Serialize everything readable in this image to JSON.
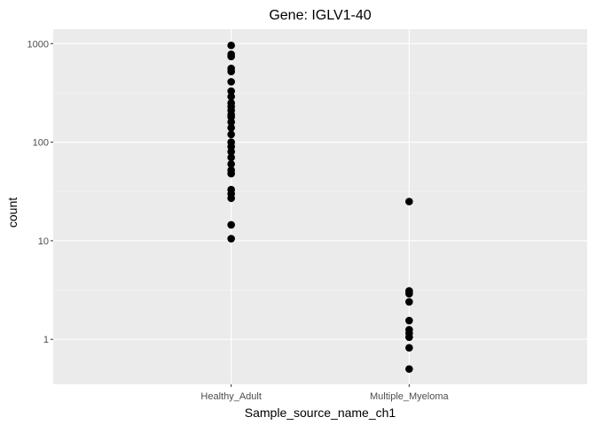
{
  "chart_data": {
    "type": "scatter",
    "title": "Gene: IGLV1-40",
    "xlabel": "Sample_source_name_ch1",
    "ylabel": "count",
    "y_scale": "log10",
    "ylim": [
      0.35,
      1400
    ],
    "y_ticks": [
      1,
      10,
      100,
      1000
    ],
    "y_tick_labels": [
      "1",
      "10",
      "100",
      "1000"
    ],
    "categories": [
      "Healthy_Adult",
      "Multiple_Myeloma"
    ],
    "grid": true,
    "colors": {
      "panel_background": "#ebebeb",
      "grid_major": "#ffffff",
      "grid_minor": "#f5f5f5",
      "point": "#000000",
      "tick_label": "#4d4d4d"
    },
    "series": [
      {
        "category": "Healthy_Adult",
        "values": [
          960,
          780,
          740,
          560,
          520,
          410,
          330,
          290,
          250,
          230,
          210,
          190,
          180,
          160,
          140,
          120,
          100,
          90,
          80,
          70,
          60,
          52,
          48,
          33,
          30,
          27,
          14.5,
          10.5
        ]
      },
      {
        "category": "Multiple_Myeloma",
        "values": [
          25,
          3.1,
          3.0,
          2.9,
          2.4,
          1.55,
          1.25,
          1.15,
          1.05,
          0.82,
          0.5
        ]
      }
    ]
  }
}
